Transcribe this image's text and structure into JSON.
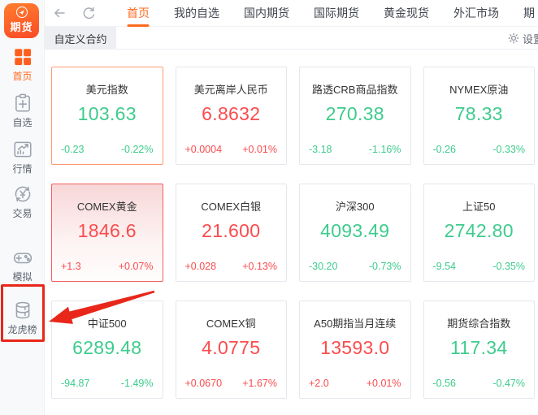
{
  "app": {
    "logo_text": "期货"
  },
  "nav": {
    "back_icon": "back-arrow-icon",
    "refresh_icon": "refresh-icon",
    "tabs": [
      {
        "key": "home",
        "label": "首页",
        "active": true
      },
      {
        "key": "my-favorites",
        "label": "我的自选",
        "active": false
      },
      {
        "key": "domestic-futures",
        "label": "国内期货",
        "active": false
      },
      {
        "key": "intl-futures",
        "label": "国际期货",
        "active": false
      },
      {
        "key": "gold-spot",
        "label": "黄金现货",
        "active": false
      },
      {
        "key": "forex",
        "label": "外汇市场",
        "active": false
      },
      {
        "key": "clipped",
        "label": "期",
        "active": false,
        "truncated": true
      }
    ]
  },
  "subnav": {
    "active_tab": "自定义合约",
    "settings_label": "设置",
    "settings_icon": "gear-icon"
  },
  "sidebar": {
    "items": [
      {
        "key": "home",
        "label": "首页",
        "icon": "home-grid-icon",
        "active": true
      },
      {
        "key": "watchlist",
        "label": "自选",
        "icon": "watchlist-clipboard-icon",
        "active": false
      },
      {
        "key": "market",
        "label": "行情",
        "icon": "market-chart-icon",
        "active": false
      },
      {
        "key": "trade",
        "label": "交易",
        "icon": "trade-yuan-cycle-icon",
        "active": false
      },
      {
        "key": "simulation",
        "label": "模拟",
        "icon": "simulation-gamepad-icon",
        "active": false
      },
      {
        "key": "ranking",
        "label": "龙虎榜",
        "icon": "ranking-database-icon",
        "active": false,
        "annotated": true
      }
    ]
  },
  "market_cards": [
    {
      "name": "美元指数",
      "price": "103.63",
      "change": "-0.23",
      "change_pct": "-0.22%",
      "direction": "down",
      "state": "hover"
    },
    {
      "name": "美元离岸人民币",
      "price": "6.8632",
      "change": "+0.0004",
      "change_pct": "+0.01%",
      "direction": "up"
    },
    {
      "name": "路透CRB商品指数",
      "price": "270.38",
      "change": "-3.18",
      "change_pct": "-1.16%",
      "direction": "down"
    },
    {
      "name": "NYMEX原油",
      "price": "78.33",
      "change": "-0.26",
      "change_pct": "-0.33%",
      "direction": "down"
    },
    {
      "name": "COMEX黄金",
      "price": "1846.6",
      "change": "+1.3",
      "change_pct": "+0.07%",
      "direction": "up",
      "state": "selected"
    },
    {
      "name": "COMEX白银",
      "price": "21.600",
      "change": "+0.028",
      "change_pct": "+0.13%",
      "direction": "up"
    },
    {
      "name": "沪深300",
      "price": "4093.49",
      "change": "-30.20",
      "change_pct": "-0.73%",
      "direction": "down"
    },
    {
      "name": "上证50",
      "price": "2742.80",
      "change": "-9.54",
      "change_pct": "-0.35%",
      "direction": "down"
    },
    {
      "name": "中证500",
      "price": "6289.48",
      "change": "-94.87",
      "change_pct": "-1.49%",
      "direction": "down"
    },
    {
      "name": "COMEX铜",
      "price": "4.0775",
      "change": "+0.0670",
      "change_pct": "+1.67%",
      "direction": "up"
    },
    {
      "name": "A50期指当月连续",
      "price": "13593.0",
      "change": "+2.0",
      "change_pct": "+0.01%",
      "direction": "up"
    },
    {
      "name": "期货综合指数",
      "price": "117.34",
      "change": "-0.56",
      "change_pct": "-0.47%",
      "direction": "down"
    }
  ],
  "annotation": {
    "shape": "red-box-and-arrow",
    "target": "龙虎榜"
  },
  "colors": {
    "accent": "#ff6a1e",
    "up_red": "#fb4b4d",
    "down_green": "#3ecb8d",
    "annotation_red": "#e8271a",
    "selected_card_border": "#f55f5f",
    "hover_card_border": "#ff9b70"
  }
}
